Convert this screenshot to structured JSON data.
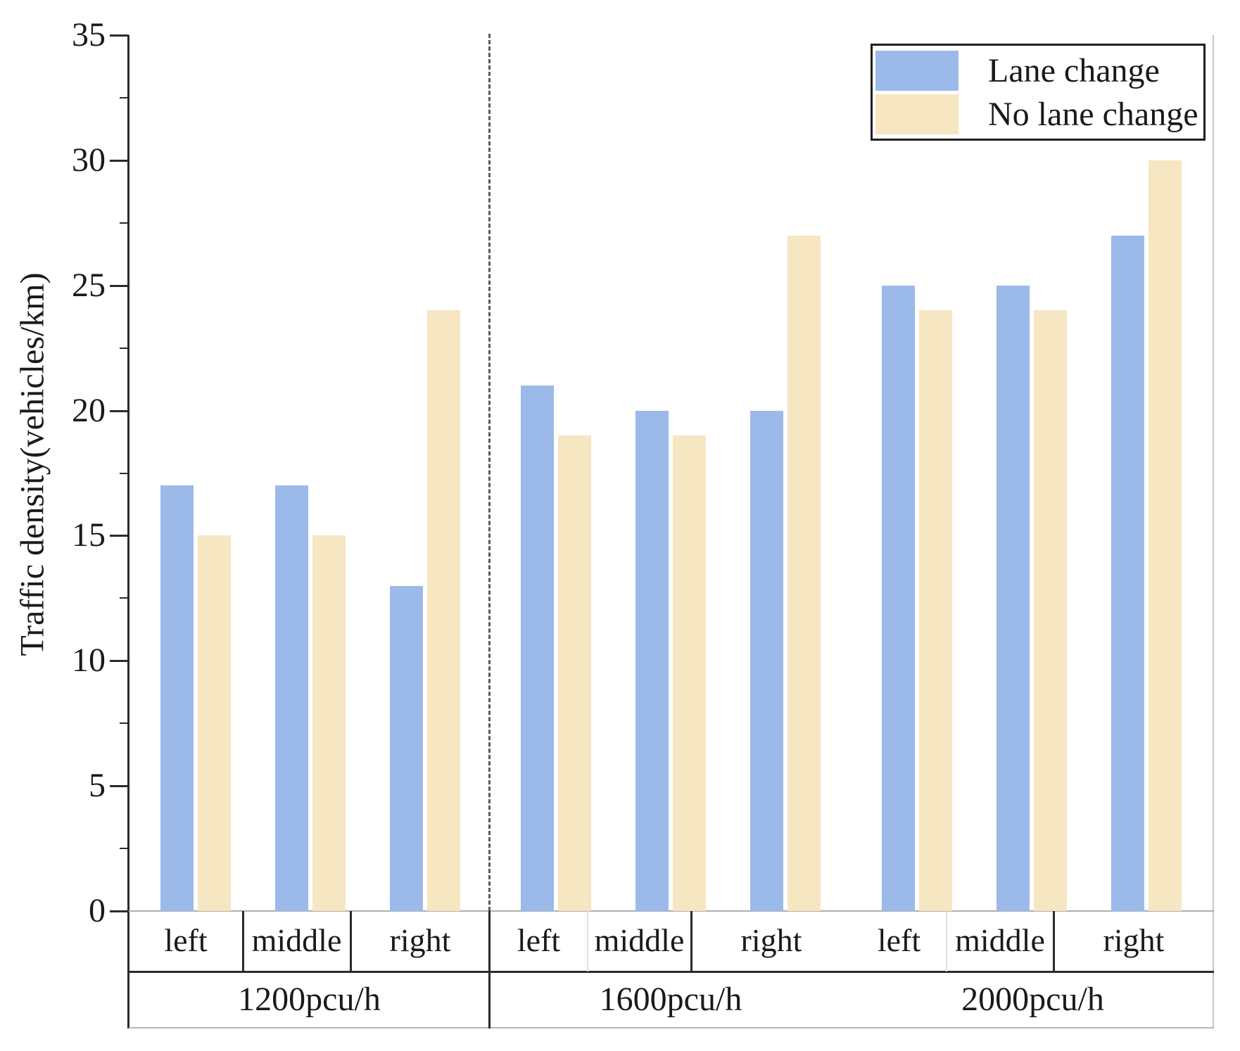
{
  "chart_data": {
    "type": "bar",
    "title": "",
    "xlabel": "",
    "ylabel": "Traffic density(vehicles/km)",
    "ylim": [
      0,
      35
    ],
    "yticks": [
      0,
      5,
      10,
      15,
      20,
      25,
      30,
      35
    ],
    "minor_tick_step": 2.5,
    "grid": false,
    "legend_position": "top-right",
    "group_separator": {
      "style": "dashed",
      "after_group_index": 0
    },
    "groups": [
      {
        "label": "1200pcu/h",
        "lanes": [
          "left",
          "middle",
          "right"
        ]
      },
      {
        "label": "1600pcu/h",
        "lanes": [
          "left",
          "middle",
          "right"
        ]
      },
      {
        "label": "2000pcu/h",
        "lanes": [
          "left",
          "middle",
          "right"
        ]
      }
    ],
    "series": [
      {
        "name": "Lane change",
        "color": "#9bbae9",
        "values": [
          [
            17,
            17,
            13
          ],
          [
            21,
            20,
            20
          ],
          [
            25,
            25,
            27
          ]
        ]
      },
      {
        "name": "No lane change",
        "color": "#f6e6c1",
        "values": [
          [
            15,
            15,
            24
          ],
          [
            19,
            19,
            27
          ],
          [
            24,
            24,
            30
          ]
        ]
      }
    ]
  }
}
